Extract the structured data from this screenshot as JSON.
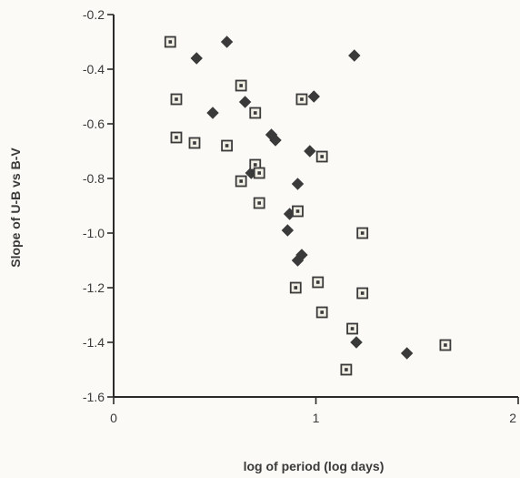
{
  "chart_data": {
    "type": "scatter",
    "title": "",
    "xlabel": "log of period (log days)",
    "ylabel": "Slope of U-B vs B-V",
    "xlim": [
      0,
      2
    ],
    "ylim": [
      -1.6,
      -0.2
    ],
    "x_ticks": [
      0,
      1,
      2
    ],
    "x_tick_labels": [
      "0",
      "1",
      "2"
    ],
    "y_ticks": [
      -0.2,
      -0.4,
      -0.6,
      -0.8,
      -1.0,
      -1.2,
      -1.4,
      -1.6
    ],
    "y_tick_labels": [
      "-0.2",
      "-0.4",
      "-0.6",
      "-0.8",
      "-1.0",
      "-1.2",
      "-1.4",
      "-1.6"
    ],
    "grid": false,
    "legend": "none",
    "colors": {
      "axis": "#2a2a2a",
      "marker": "#3a3a3a",
      "marker_fill_square": "#f2efe6",
      "background": "#fbfaf6"
    },
    "series": [
      {
        "marker": "diamond",
        "points": [
          {
            "x": 0.56,
            "y": -0.3
          },
          {
            "x": 0.41,
            "y": -0.36
          },
          {
            "x": 1.19,
            "y": -0.35
          },
          {
            "x": 0.49,
            "y": -0.56
          },
          {
            "x": 0.65,
            "y": -0.52
          },
          {
            "x": 0.99,
            "y": -0.5
          },
          {
            "x": 0.78,
            "y": -0.64
          },
          {
            "x": 0.8,
            "y": -0.66
          },
          {
            "x": 0.97,
            "y": -0.7
          },
          {
            "x": 0.68,
            "y": -0.78
          },
          {
            "x": 0.91,
            "y": -0.82
          },
          {
            "x": 0.87,
            "y": -0.93
          },
          {
            "x": 0.86,
            "y": -0.99
          },
          {
            "x": 0.93,
            "y": -1.08
          },
          {
            "x": 0.91,
            "y": -1.1
          },
          {
            "x": 1.2,
            "y": -1.4
          },
          {
            "x": 1.45,
            "y": -1.44
          }
        ]
      },
      {
        "marker": "square",
        "points": [
          {
            "x": 0.28,
            "y": -0.3
          },
          {
            "x": 0.31,
            "y": -0.51
          },
          {
            "x": 0.31,
            "y": -0.65
          },
          {
            "x": 0.4,
            "y": -0.67
          },
          {
            "x": 0.63,
            "y": -0.46
          },
          {
            "x": 0.7,
            "y": -0.56
          },
          {
            "x": 0.56,
            "y": -0.68
          },
          {
            "x": 0.63,
            "y": -0.81
          },
          {
            "x": 0.7,
            "y": -0.75
          },
          {
            "x": 0.72,
            "y": -0.78
          },
          {
            "x": 0.72,
            "y": -0.89
          },
          {
            "x": 0.93,
            "y": -0.51
          },
          {
            "x": 1.03,
            "y": -0.72
          },
          {
            "x": 0.91,
            "y": -0.92
          },
          {
            "x": 0.9,
            "y": -1.2
          },
          {
            "x": 1.01,
            "y": -1.18
          },
          {
            "x": 1.03,
            "y": -1.29
          },
          {
            "x": 1.23,
            "y": -1.0
          },
          {
            "x": 1.23,
            "y": -1.22
          },
          {
            "x": 1.18,
            "y": -1.35
          },
          {
            "x": 1.15,
            "y": -1.5
          },
          {
            "x": 1.64,
            "y": -1.41
          }
        ]
      }
    ]
  }
}
